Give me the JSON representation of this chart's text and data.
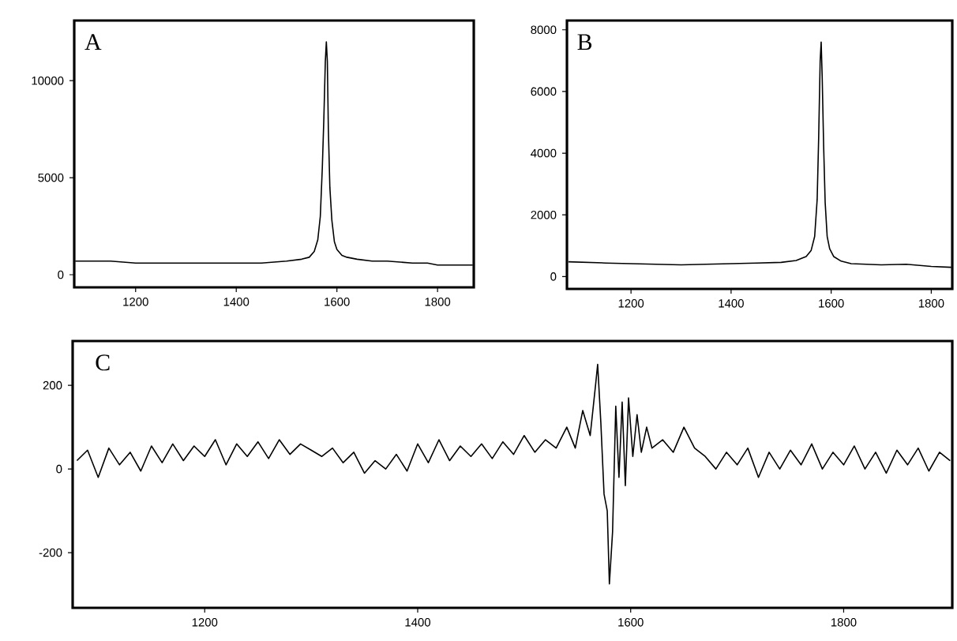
{
  "chart_data": [
    {
      "type": "line",
      "title": "A",
      "xlim": [
        1078,
        1872
      ],
      "ylim": [
        -650,
        13100
      ],
      "xticks": [
        1200,
        1400,
        1600,
        1800
      ],
      "yticks": [
        0,
        5000,
        10000
      ],
      "grid": false,
      "series": [
        {
          "color": "#000000",
          "x": [
            1080,
            1150,
            1200,
            1300,
            1400,
            1450,
            1500,
            1530,
            1545,
            1555,
            1562,
            1567,
            1571,
            1574,
            1577,
            1579,
            1581,
            1583,
            1586,
            1590,
            1595,
            1600,
            1610,
            1620,
            1640,
            1670,
            1700,
            1750,
            1780,
            1800,
            1830,
            1870
          ],
          "values": [
            700,
            700,
            600,
            600,
            600,
            600,
            700,
            800,
            900,
            1200,
            1800,
            3000,
            5500,
            8000,
            11000,
            12000,
            11000,
            7500,
            4500,
            2800,
            1700,
            1300,
            1000,
            900,
            800,
            700,
            700,
            600,
            600,
            500,
            500,
            500
          ]
        }
      ]
    },
    {
      "type": "line",
      "title": "B",
      "xlim": [
        1072,
        1842
      ],
      "ylim": [
        -400,
        8300
      ],
      "xticks": [
        1200,
        1400,
        1600,
        1800
      ],
      "yticks": [
        0,
        2000,
        4000,
        6000,
        8000
      ],
      "grid": false,
      "series": [
        {
          "color": "#000000",
          "x": [
            1075,
            1150,
            1200,
            1300,
            1400,
            1450,
            1500,
            1530,
            1550,
            1560,
            1567,
            1572,
            1575,
            1578,
            1580,
            1582,
            1585,
            1588,
            1592,
            1597,
            1605,
            1620,
            1640,
            1700,
            1750,
            1800,
            1840
          ],
          "values": [
            480,
            440,
            420,
            380,
            420,
            440,
            460,
            520,
            650,
            850,
            1300,
            2500,
            4500,
            7000,
            7600,
            6500,
            4200,
            2400,
            1300,
            900,
            650,
            500,
            420,
            380,
            400,
            330,
            300
          ]
        }
      ]
    },
    {
      "type": "line",
      "title": "C",
      "xlim": [
        1076,
        1902
      ],
      "ylim": [
        -332,
        306
      ],
      "xticks": [
        1200,
        1400,
        1600,
        1800
      ],
      "yticks": [
        -200,
        0,
        200
      ],
      "grid": false,
      "series": [
        {
          "color": "#000000",
          "x": [
            1080,
            1090,
            1100,
            1110,
            1120,
            1130,
            1140,
            1150,
            1160,
            1170,
            1180,
            1190,
            1200,
            1210,
            1220,
            1230,
            1240,
            1250,
            1260,
            1270,
            1280,
            1290,
            1300,
            1310,
            1320,
            1330,
            1340,
            1350,
            1360,
            1370,
            1380,
            1390,
            1400,
            1410,
            1420,
            1430,
            1440,
            1450,
            1460,
            1470,
            1480,
            1490,
            1500,
            1510,
            1520,
            1530,
            1540,
            1548,
            1555,
            1562,
            1567,
            1569,
            1572,
            1575,
            1578,
            1580,
            1583,
            1586,
            1589,
            1592,
            1595,
            1598,
            1602,
            1606,
            1610,
            1615,
            1620,
            1630,
            1640,
            1650,
            1660,
            1670,
            1680,
            1690,
            1700,
            1710,
            1720,
            1730,
            1740,
            1750,
            1760,
            1770,
            1780,
            1790,
            1800,
            1810,
            1820,
            1830,
            1840,
            1850,
            1860,
            1870,
            1880,
            1890,
            1900
          ],
          "values": [
            20,
            45,
            -20,
            50,
            10,
            40,
            -5,
            55,
            15,
            60,
            20,
            55,
            30,
            70,
            10,
            60,
            30,
            65,
            25,
            70,
            35,
            60,
            45,
            30,
            50,
            15,
            40,
            -10,
            20,
            0,
            35,
            -5,
            60,
            15,
            70,
            20,
            55,
            30,
            60,
            25,
            65,
            35,
            80,
            40,
            70,
            50,
            100,
            50,
            140,
            80,
            200,
            250,
            110,
            -60,
            -100,
            -275,
            -150,
            150,
            -20,
            160,
            -40,
            170,
            30,
            130,
            40,
            100,
            50,
            70,
            40,
            100,
            50,
            30,
            0,
            40,
            10,
            50,
            -20,
            40,
            0,
            45,
            10,
            60,
            0,
            40,
            10,
            55,
            0,
            40,
            -10,
            45,
            10,
            50,
            -5,
            40,
            20
          ]
        }
      ]
    }
  ]
}
